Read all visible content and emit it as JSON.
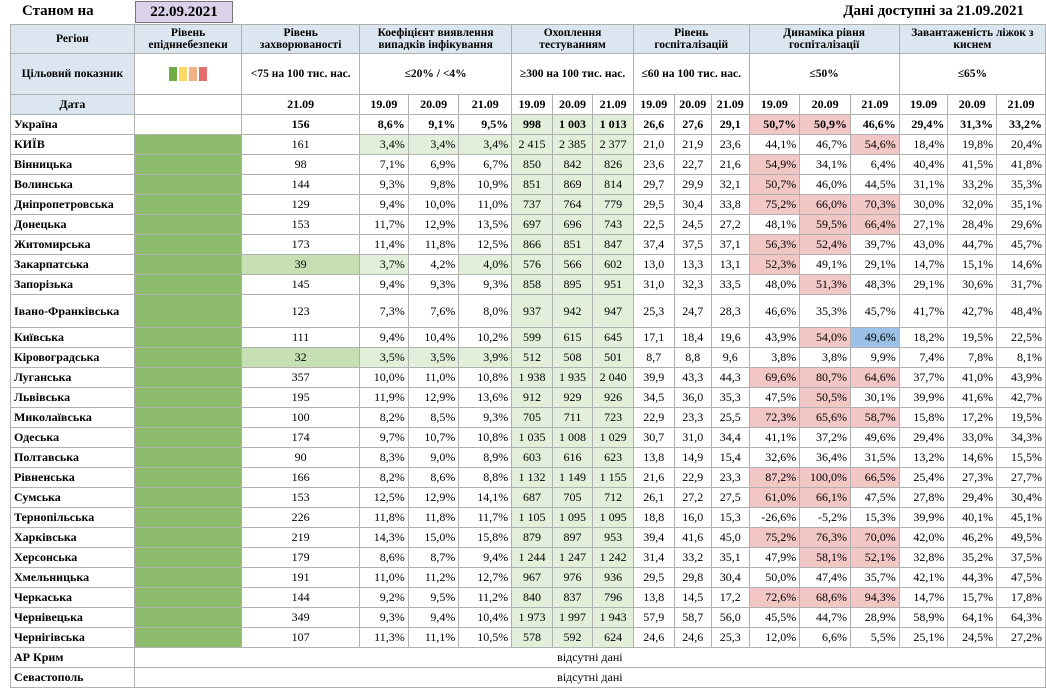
{
  "header": {
    "asof_label": "Станом на",
    "asof_date": "22.09.2021",
    "available_label": "Дані доступні за  21.09.2021"
  },
  "columns": {
    "region": "Регіон",
    "epi": "Рівень епідннебезпеки",
    "incidence": "Рівень захворюваності",
    "detection": "Коефіцієнт виявлення випадків інфікування",
    "testing": "Охоплення тестуванням",
    "hosp": "Рівень госпіталізацій",
    "dynamics": "Динаміка рівня госпіталізації",
    "oxygen": "Завантаженість ліжок з киснем"
  },
  "target": {
    "label": "Цільовий показник",
    "incidence": "<75 на 100 тис. нас.",
    "detection": "≤20% / <4%",
    "testing": "≥300 на 100 тис. нас.",
    "hosp": "≤60 на 100 тис. нас.",
    "dynamics": "≤50%",
    "oxygen": "≤65%",
    "swatch_colors": [
      "#70ad47",
      "#ffd966",
      "#f4b183",
      "#e46c6c"
    ]
  },
  "dates": {
    "label": "Дата",
    "incidence": "21.09",
    "d1": "19.09",
    "d2": "20.09",
    "d3": "21.09"
  },
  "rows": [
    {
      "name": "Україна",
      "epi": "",
      "inc": "156",
      "det": [
        "8,6%",
        "9,1%",
        "9,5%"
      ],
      "test": [
        "998",
        "1 003",
        "1 013"
      ],
      "hosp": [
        "26,6",
        "27,6",
        "29,1"
      ],
      "dyn": [
        "50,7%",
        "50,9%",
        "46,6%"
      ],
      "oxy": [
        "29,4%",
        "31,3%",
        "33,2%"
      ],
      "dyn_c": [
        "r",
        "r",
        ""
      ],
      "det_c": [
        "",
        "",
        ""
      ],
      "inc_c": "",
      "test_c": "g",
      "ukr": true
    },
    {
      "name": "КИЇВ",
      "epi": "g",
      "inc": "161",
      "det": [
        "3,4%",
        "3,4%",
        "3,4%"
      ],
      "test": [
        "2 415",
        "2 385",
        "2 377"
      ],
      "hosp": [
        "21,0",
        "21,9",
        "23,6"
      ],
      "dyn": [
        "44,1%",
        "46,7%",
        "54,6%"
      ],
      "oxy": [
        "18,4%",
        "19,8%",
        "20,4%"
      ],
      "dyn_c": [
        "",
        "",
        "r"
      ],
      "det_c": [
        "g",
        "g",
        "g"
      ],
      "inc_c": "",
      "test_c": "g"
    },
    {
      "name": "Вінницька",
      "epi": "g",
      "inc": "98",
      "det": [
        "7,1%",
        "6,9%",
        "6,7%"
      ],
      "test": [
        "850",
        "842",
        "826"
      ],
      "hosp": [
        "23,6",
        "22,7",
        "21,6"
      ],
      "dyn": [
        "54,9%",
        "34,1%",
        "6,4%"
      ],
      "oxy": [
        "40,4%",
        "41,5%",
        "41,8%"
      ],
      "dyn_c": [
        "r",
        "",
        ""
      ],
      "det_c": [
        "",
        "",
        ""
      ],
      "inc_c": "",
      "test_c": "g"
    },
    {
      "name": "Волинська",
      "epi": "g",
      "inc": "144",
      "det": [
        "9,3%",
        "9,8%",
        "10,9%"
      ],
      "test": [
        "851",
        "869",
        "814"
      ],
      "hosp": [
        "29,7",
        "29,9",
        "32,1"
      ],
      "dyn": [
        "50,7%",
        "46,0%",
        "44,5%"
      ],
      "oxy": [
        "31,1%",
        "33,2%",
        "35,3%"
      ],
      "dyn_c": [
        "r",
        "",
        ""
      ],
      "det_c": [
        "",
        "",
        ""
      ],
      "inc_c": "",
      "test_c": "g"
    },
    {
      "name": "Дніпропетровська",
      "epi": "g",
      "inc": "129",
      "det": [
        "9,4%",
        "10,0%",
        "11,0%"
      ],
      "test": [
        "737",
        "764",
        "779"
      ],
      "hosp": [
        "29,5",
        "30,4",
        "33,8"
      ],
      "dyn": [
        "75,2%",
        "66,0%",
        "70,3%"
      ],
      "oxy": [
        "30,0%",
        "32,0%",
        "35,1%"
      ],
      "dyn_c": [
        "r",
        "r",
        "r"
      ],
      "det_c": [
        "",
        "",
        ""
      ],
      "inc_c": "",
      "test_c": "g"
    },
    {
      "name": "Донецька",
      "epi": "g",
      "inc": "153",
      "det": [
        "11,7%",
        "12,9%",
        "13,5%"
      ],
      "test": [
        "697",
        "696",
        "743"
      ],
      "hosp": [
        "22,5",
        "24,5",
        "27,2"
      ],
      "dyn": [
        "48,1%",
        "59,5%",
        "66,4%"
      ],
      "oxy": [
        "27,1%",
        "28,4%",
        "29,6%"
      ],
      "dyn_c": [
        "",
        "r",
        "r"
      ],
      "det_c": [
        "",
        "",
        ""
      ],
      "inc_c": "",
      "test_c": "g"
    },
    {
      "name": "Житомирська",
      "epi": "g",
      "inc": "173",
      "det": [
        "11,4%",
        "11,8%",
        "12,5%"
      ],
      "test": [
        "866",
        "851",
        "847"
      ],
      "hosp": [
        "37,4",
        "37,5",
        "37,1"
      ],
      "dyn": [
        "56,3%",
        "52,4%",
        "39,7%"
      ],
      "oxy": [
        "43,0%",
        "44,7%",
        "45,7%"
      ],
      "dyn_c": [
        "r",
        "r",
        ""
      ],
      "det_c": [
        "",
        "",
        ""
      ],
      "inc_c": "",
      "test_c": "g"
    },
    {
      "name": "Закарпатська",
      "epi": "g",
      "inc": "39",
      "det": [
        "3,7%",
        "4,2%",
        "4,0%"
      ],
      "test": [
        "576",
        "566",
        "602"
      ],
      "hosp": [
        "13,0",
        "13,3",
        "13,1"
      ],
      "dyn": [
        "52,3%",
        "49,1%",
        "29,1%"
      ],
      "oxy": [
        "14,7%",
        "15,1%",
        "14,6%"
      ],
      "dyn_c": [
        "r",
        "",
        ""
      ],
      "det_c": [
        "g",
        "",
        "g"
      ],
      "inc_c": "g",
      "test_c": "g"
    },
    {
      "name": "Запорізька",
      "epi": "g",
      "inc": "145",
      "det": [
        "9,4%",
        "9,3%",
        "9,3%"
      ],
      "test": [
        "858",
        "895",
        "951"
      ],
      "hosp": [
        "31,0",
        "32,3",
        "33,5"
      ],
      "dyn": [
        "48,0%",
        "51,3%",
        "48,3%"
      ],
      "oxy": [
        "29,1%",
        "30,6%",
        "31,7%"
      ],
      "dyn_c": [
        "",
        "r",
        ""
      ],
      "det_c": [
        "",
        "",
        ""
      ],
      "inc_c": "",
      "test_c": "g"
    },
    {
      "name": "Івано-Франківська",
      "epi": "g",
      "inc": "123",
      "det": [
        "7,3%",
        "7,6%",
        "8,0%"
      ],
      "test": [
        "937",
        "942",
        "947"
      ],
      "hosp": [
        "25,3",
        "24,7",
        "28,3"
      ],
      "dyn": [
        "46,6%",
        "35,3%",
        "45,7%"
      ],
      "oxy": [
        "41,7%",
        "42,7%",
        "48,4%"
      ],
      "dyn_c": [
        "",
        "",
        ""
      ],
      "det_c": [
        "",
        "",
        ""
      ],
      "inc_c": "",
      "test_c": "g",
      "tall": true
    },
    {
      "name": "Київська",
      "epi": "g",
      "inc": "111",
      "det": [
        "9,4%",
        "10,4%",
        "10,2%"
      ],
      "test": [
        "599",
        "615",
        "645"
      ],
      "hosp": [
        "17,1",
        "18,4",
        "19,6"
      ],
      "dyn": [
        "43,9%",
        "54,0%",
        "49,6%"
      ],
      "oxy": [
        "18,2%",
        "19,5%",
        "22,5%"
      ],
      "dyn_c": [
        "",
        "r",
        "b"
      ],
      "det_c": [
        "",
        "",
        ""
      ],
      "inc_c": "",
      "test_c": "g"
    },
    {
      "name": "Кіровоградська",
      "epi": "g",
      "inc": "32",
      "det": [
        "3,5%",
        "3,5%",
        "3,9%"
      ],
      "test": [
        "512",
        "508",
        "501"
      ],
      "hosp": [
        "8,7",
        "8,8",
        "9,6"
      ],
      "dyn": [
        "3,8%",
        "3,8%",
        "9,9%"
      ],
      "oxy": [
        "7,4%",
        "7,8%",
        "8,1%"
      ],
      "dyn_c": [
        "",
        "",
        ""
      ],
      "det_c": [
        "g",
        "g",
        "g"
      ],
      "inc_c": "g",
      "test_c": "g"
    },
    {
      "name": "Луганська",
      "epi": "g",
      "inc": "357",
      "det": [
        "10,0%",
        "11,0%",
        "10,8%"
      ],
      "test": [
        "1 938",
        "1 935",
        "2 040"
      ],
      "hosp": [
        "39,9",
        "43,3",
        "44,3"
      ],
      "dyn": [
        "69,6%",
        "80,7%",
        "64,6%"
      ],
      "oxy": [
        "37,7%",
        "41,0%",
        "43,9%"
      ],
      "dyn_c": [
        "r",
        "r",
        "r"
      ],
      "det_c": [
        "",
        "",
        ""
      ],
      "inc_c": "",
      "test_c": "g"
    },
    {
      "name": "Львівська",
      "epi": "g",
      "inc": "195",
      "det": [
        "11,9%",
        "12,9%",
        "13,6%"
      ],
      "test": [
        "912",
        "929",
        "926"
      ],
      "hosp": [
        "34,5",
        "36,0",
        "35,3"
      ],
      "dyn": [
        "47,5%",
        "50,5%",
        "30,1%"
      ],
      "oxy": [
        "39,9%",
        "41,6%",
        "42,7%"
      ],
      "dyn_c": [
        "",
        "r",
        ""
      ],
      "det_c": [
        "",
        "",
        ""
      ],
      "inc_c": "",
      "test_c": "g"
    },
    {
      "name": "Миколаївська",
      "epi": "g",
      "inc": "100",
      "det": [
        "8,2%",
        "8,5%",
        "9,3%"
      ],
      "test": [
        "705",
        "711",
        "723"
      ],
      "hosp": [
        "22,9",
        "23,3",
        "25,5"
      ],
      "dyn": [
        "72,3%",
        "65,6%",
        "58,7%"
      ],
      "oxy": [
        "15,8%",
        "17,2%",
        "19,5%"
      ],
      "dyn_c": [
        "r",
        "r",
        "r"
      ],
      "det_c": [
        "",
        "",
        ""
      ],
      "inc_c": "",
      "test_c": "g"
    },
    {
      "name": "Одеська",
      "epi": "g",
      "inc": "174",
      "det": [
        "9,7%",
        "10,7%",
        "10,8%"
      ],
      "test": [
        "1 035",
        "1 008",
        "1 029"
      ],
      "hosp": [
        "30,7",
        "31,0",
        "34,4"
      ],
      "dyn": [
        "41,1%",
        "37,2%",
        "49,6%"
      ],
      "oxy": [
        "29,4%",
        "33,0%",
        "34,3%"
      ],
      "dyn_c": [
        "",
        "",
        ""
      ],
      "det_c": [
        "",
        "",
        ""
      ],
      "inc_c": "",
      "test_c": "g"
    },
    {
      "name": "Полтавська",
      "epi": "g",
      "inc": "90",
      "det": [
        "8,3%",
        "9,0%",
        "8,9%"
      ],
      "test": [
        "603",
        "616",
        "623"
      ],
      "hosp": [
        "13,8",
        "14,9",
        "15,4"
      ],
      "dyn": [
        "32,6%",
        "36,4%",
        "31,5%"
      ],
      "oxy": [
        "13,2%",
        "14,6%",
        "15,5%"
      ],
      "dyn_c": [
        "",
        "",
        ""
      ],
      "det_c": [
        "",
        "",
        ""
      ],
      "inc_c": "",
      "test_c": "g"
    },
    {
      "name": "Рівненська",
      "epi": "g",
      "inc": "166",
      "det": [
        "8,2%",
        "8,6%",
        "8,8%"
      ],
      "test": [
        "1 132",
        "1 149",
        "1 155"
      ],
      "hosp": [
        "21,6",
        "22,9",
        "23,3"
      ],
      "dyn": [
        "87,2%",
        "100,0%",
        "66,5%"
      ],
      "oxy": [
        "25,4%",
        "27,3%",
        "27,7%"
      ],
      "dyn_c": [
        "r",
        "r",
        "r"
      ],
      "det_c": [
        "",
        "",
        ""
      ],
      "inc_c": "",
      "test_c": "g"
    },
    {
      "name": "Сумська",
      "epi": "g",
      "inc": "153",
      "det": [
        "12,5%",
        "12,9%",
        "14,1%"
      ],
      "test": [
        "687",
        "705",
        "712"
      ],
      "hosp": [
        "26,1",
        "27,2",
        "27,5"
      ],
      "dyn": [
        "61,0%",
        "66,1%",
        "47,5%"
      ],
      "oxy": [
        "27,8%",
        "29,4%",
        "30,4%"
      ],
      "dyn_c": [
        "r",
        "r",
        ""
      ],
      "det_c": [
        "",
        "",
        ""
      ],
      "inc_c": "",
      "test_c": "g"
    },
    {
      "name": "Тернопільська",
      "epi": "g",
      "inc": "226",
      "det": [
        "11,8%",
        "11,8%",
        "11,7%"
      ],
      "test": [
        "1 105",
        "1 095",
        "1 095"
      ],
      "hosp": [
        "18,8",
        "16,0",
        "15,3"
      ],
      "dyn": [
        "-26,6%",
        "-5,2%",
        "15,3%"
      ],
      "oxy": [
        "39,9%",
        "40,1%",
        "45,1%"
      ],
      "dyn_c": [
        "",
        "",
        ""
      ],
      "det_c": [
        "",
        "",
        ""
      ],
      "inc_c": "",
      "test_c": "g"
    },
    {
      "name": "Харківська",
      "epi": "g",
      "inc": "219",
      "det": [
        "14,3%",
        "15,0%",
        "15,8%"
      ],
      "test": [
        "879",
        "897",
        "953"
      ],
      "hosp": [
        "39,4",
        "41,6",
        "45,0"
      ],
      "dyn": [
        "75,2%",
        "76,3%",
        "70,0%"
      ],
      "oxy": [
        "42,0%",
        "46,2%",
        "49,5%"
      ],
      "dyn_c": [
        "r",
        "r",
        "r"
      ],
      "det_c": [
        "",
        "",
        ""
      ],
      "inc_c": "",
      "test_c": "g"
    },
    {
      "name": "Херсонська",
      "epi": "g",
      "inc": "179",
      "det": [
        "8,6%",
        "8,7%",
        "9,4%"
      ],
      "test": [
        "1 244",
        "1 247",
        "1 242"
      ],
      "hosp": [
        "31,4",
        "33,2",
        "35,1"
      ],
      "dyn": [
        "47,9%",
        "58,1%",
        "52,1%"
      ],
      "oxy": [
        "32,8%",
        "35,2%",
        "37,5%"
      ],
      "dyn_c": [
        "",
        "r",
        "r"
      ],
      "det_c": [
        "",
        "",
        ""
      ],
      "inc_c": "",
      "test_c": "g"
    },
    {
      "name": "Хмельницька",
      "epi": "g",
      "inc": "191",
      "det": [
        "11,0%",
        "11,2%",
        "12,7%"
      ],
      "test": [
        "967",
        "976",
        "936"
      ],
      "hosp": [
        "29,5",
        "29,8",
        "30,4"
      ],
      "dyn": [
        "50,0%",
        "47,4%",
        "35,7%"
      ],
      "oxy": [
        "42,1%",
        "44,3%",
        "47,5%"
      ],
      "dyn_c": [
        "",
        "",
        ""
      ],
      "det_c": [
        "",
        "",
        ""
      ],
      "inc_c": "",
      "test_c": "g"
    },
    {
      "name": "Черкаська",
      "epi": "g",
      "inc": "144",
      "det": [
        "9,2%",
        "9,5%",
        "11,2%"
      ],
      "test": [
        "840",
        "837",
        "796"
      ],
      "hosp": [
        "13,8",
        "14,5",
        "17,2"
      ],
      "dyn": [
        "72,6%",
        "68,6%",
        "94,3%"
      ],
      "oxy": [
        "14,7%",
        "15,7%",
        "17,8%"
      ],
      "dyn_c": [
        "r",
        "r",
        "r"
      ],
      "det_c": [
        "",
        "",
        ""
      ],
      "inc_c": "",
      "test_c": "g"
    },
    {
      "name": "Чернівецька",
      "epi": "g",
      "inc": "349",
      "det": [
        "9,3%",
        "9,4%",
        "10,4%"
      ],
      "test": [
        "1 973",
        "1 997",
        "1 943"
      ],
      "hosp": [
        "57,9",
        "58,7",
        "56,0"
      ],
      "dyn": [
        "45,5%",
        "44,7%",
        "28,9%"
      ],
      "oxy": [
        "58,9%",
        "64,1%",
        "64,3%"
      ],
      "dyn_c": [
        "",
        "",
        ""
      ],
      "det_c": [
        "",
        "",
        ""
      ],
      "inc_c": "",
      "test_c": "g"
    },
    {
      "name": "Чернігівська",
      "epi": "g",
      "inc": "107",
      "det": [
        "11,3%",
        "11,1%",
        "10,5%"
      ],
      "test": [
        "578",
        "592",
        "624"
      ],
      "hosp": [
        "24,6",
        "24,6",
        "25,3"
      ],
      "dyn": [
        "12,0%",
        "6,6%",
        "5,5%"
      ],
      "oxy": [
        "25,1%",
        "24,5%",
        "27,2%"
      ],
      "dyn_c": [
        "",
        "",
        ""
      ],
      "det_c": [
        "",
        "",
        ""
      ],
      "inc_c": "",
      "test_c": "g"
    }
  ],
  "missing": [
    {
      "name": "АР Крим",
      "text": "відсутні дані"
    },
    {
      "name": "Севастополь",
      "text": "відсутні дані"
    }
  ]
}
